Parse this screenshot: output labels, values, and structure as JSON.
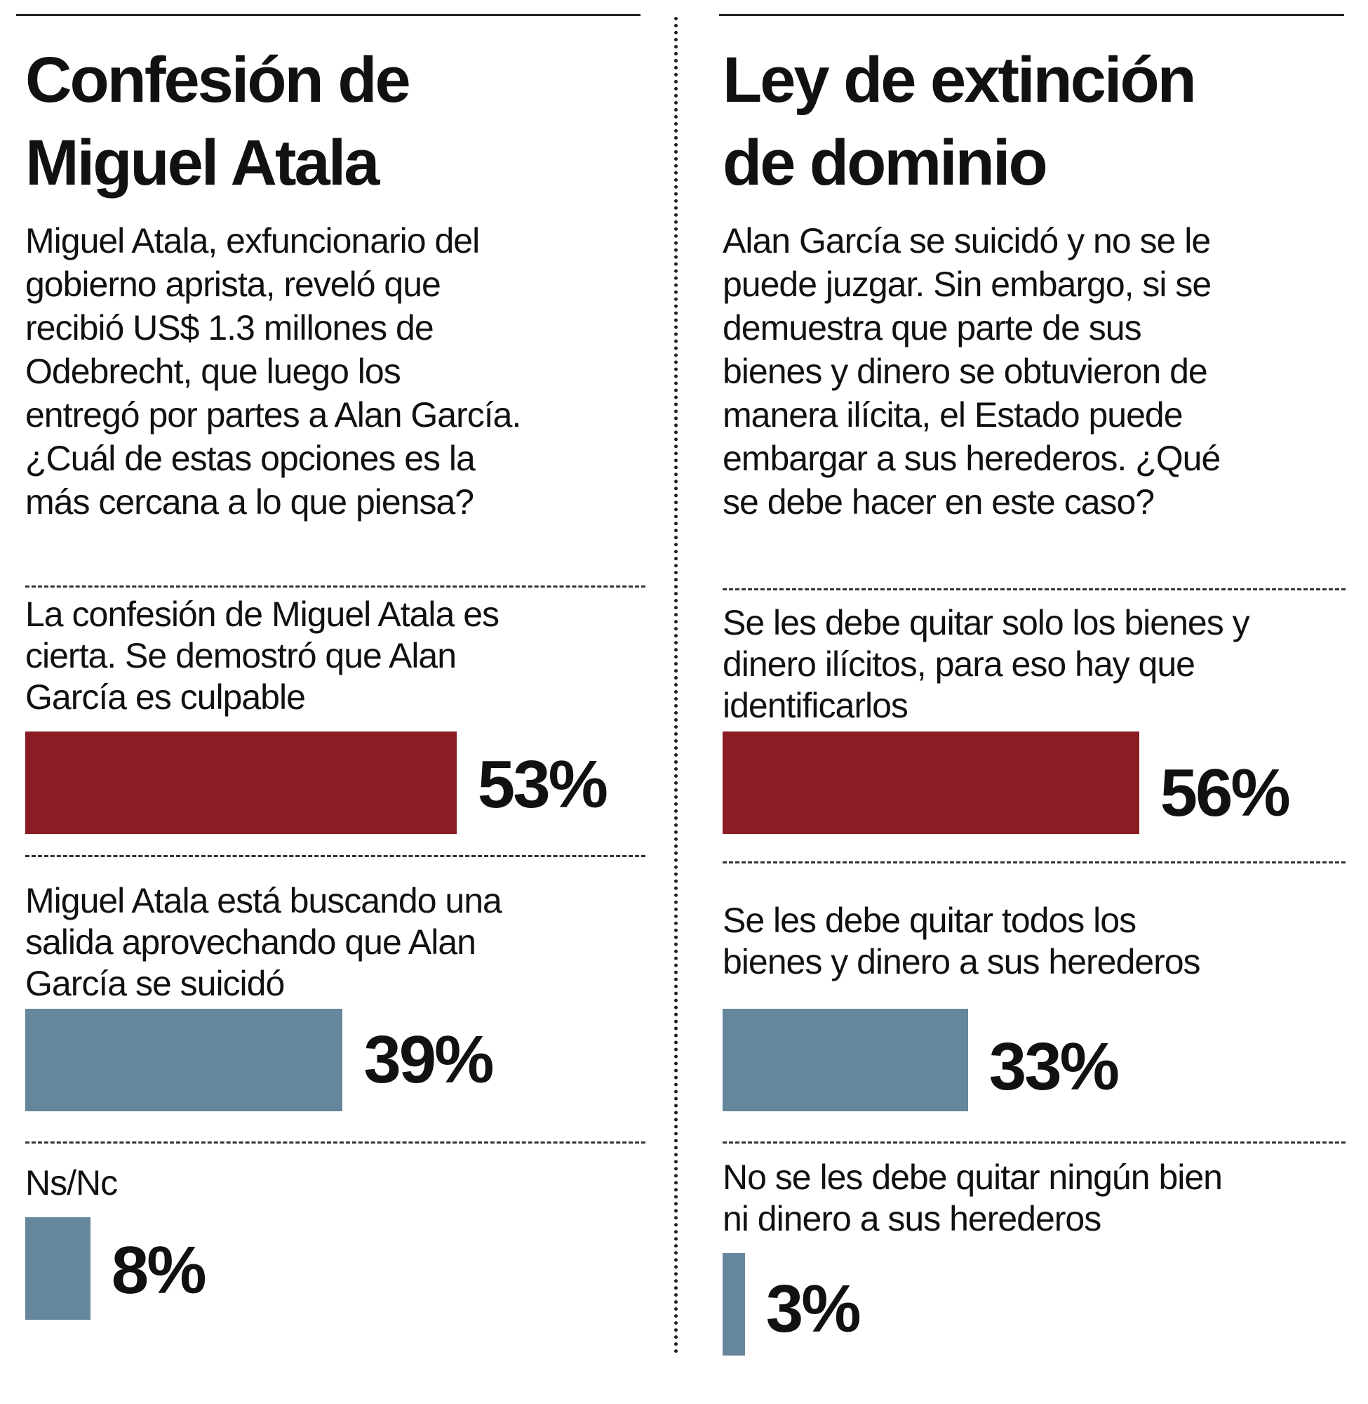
{
  "colors": {
    "primary": "#8b1c24",
    "secondary": "#66869c"
  },
  "left": {
    "title_lines": [
      "Confesión de",
      "Miguel Atala"
    ],
    "question_lines": [
      "Miguel Atala, exfuncionario del",
      "gobierno aprista,  reveló que",
      "recibió US$ 1.3 millones de",
      "Odebrecht, que luego los",
      "entregó por partes a Alan García.",
      "¿Cuál de estas opciones es la",
      "más cercana a lo que piensa?"
    ]
  },
  "right": {
    "title_lines": [
      "Ley de extinción",
      "de dominio"
    ],
    "question_lines": [
      "Alan García se suicidó y no se le",
      "puede juzgar. Sin embargo, si se",
      "demuestra que parte de sus",
      "bienes y dinero se obtuvieron de",
      "manera ilícita, el Estado puede",
      "embargar a sus herederos. ¿Qué",
      "se debe hacer en este caso?"
    ]
  },
  "chart_data": [
    {
      "type": "bar",
      "orientation": "horizontal",
      "title": "Confesión de Miguel Atala",
      "categories": [
        [
          "La confesión de Miguel Atala es",
          "cierta. Se demostró que Alan",
          "García es culpable"
        ],
        [
          "Miguel Atala está buscando una",
          "salida aprovechando que Alan",
          "García se suicidó"
        ],
        [
          "Ns/Nc"
        ]
      ],
      "values": [
        53,
        39,
        8
      ],
      "labels": [
        "53%",
        "39%",
        "8%"
      ],
      "bar_colors": [
        "#8b1c24",
        "#66869c",
        "#66869c"
      ],
      "unit": "%"
    },
    {
      "type": "bar",
      "orientation": "horizontal",
      "title": "Ley de extinción de dominio",
      "categories": [
        [
          "Se les debe quitar solo los bienes y",
          "dinero ilícitos, para eso hay que",
          "identificarlos"
        ],
        [
          "Se les debe quitar todos los",
          "bienes y dinero a sus herederos"
        ],
        [
          "No se les debe quitar ningún bien",
          "ni dinero a sus herederos"
        ]
      ],
      "values": [
        56,
        33,
        3
      ],
      "labels": [
        "56%",
        "33%",
        "3%"
      ],
      "bar_colors": [
        "#8b1c24",
        "#66869c",
        "#66869c"
      ],
      "unit": "%"
    }
  ]
}
